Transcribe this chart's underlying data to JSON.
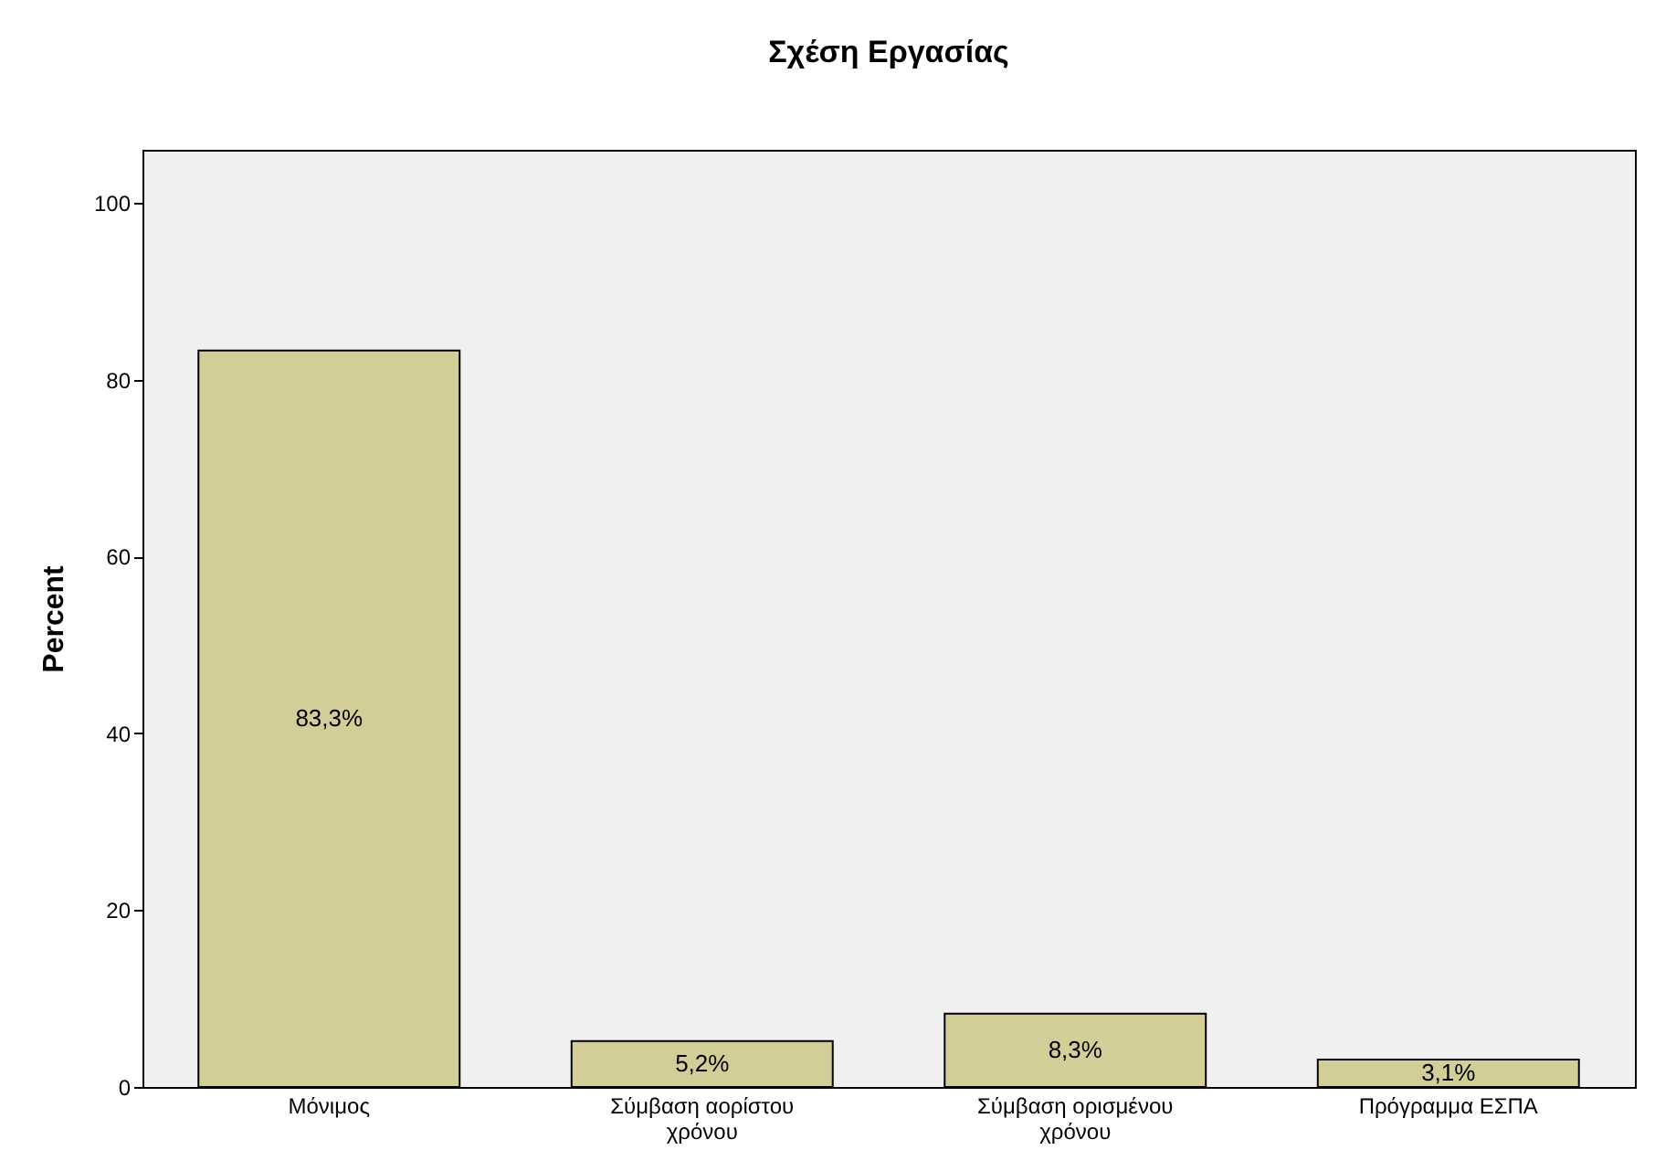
{
  "chart_data": {
    "type": "bar",
    "title": "Σχέση Εργασίας",
    "ylabel": "Percent",
    "categories": [
      "Μόνιμος",
      "Σύμβαση αορίστου χρόνου",
      "Σύμβαση ορισμένου χρόνου",
      "Πρόγραμμα ΕΣΠΑ"
    ],
    "values": [
      83.3,
      5.2,
      8.3,
      3.1
    ],
    "value_labels": [
      "83,3%",
      "5,2%",
      "8,3%",
      "3,1%"
    ],
    "color": "#d3ce97",
    "ylim": [
      0,
      106
    ],
    "yticks": [
      0,
      20,
      40,
      60,
      80,
      100
    ],
    "grid": false
  }
}
